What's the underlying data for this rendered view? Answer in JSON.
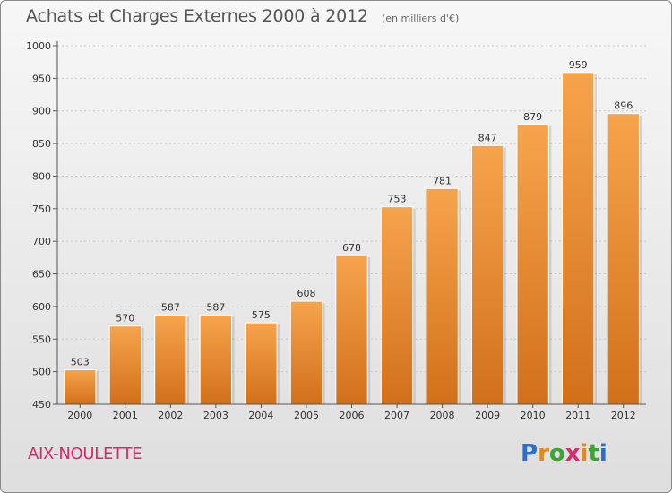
{
  "header": {
    "title": "Achats et Charges Externes 2000 à 2012",
    "unit": "(en milliers d'€)"
  },
  "footer": {
    "place": "AIX-NOULETTE",
    "logo_letters": [
      "P",
      "r",
      "o",
      "x",
      "i",
      "t",
      "i"
    ],
    "logo_colors": [
      "#2a6fc9",
      "#e08a1e",
      "#3aa534",
      "#d92a6a",
      "#e08a1e",
      "#3aa534",
      "#2a6fc9"
    ]
  },
  "chart_data": {
    "type": "bar",
    "categories": [
      "2000",
      "2001",
      "2002",
      "2003",
      "2004",
      "2005",
      "2006",
      "2007",
      "2008",
      "2009",
      "2010",
      "2011",
      "2012"
    ],
    "values": [
      503,
      570,
      587,
      587,
      575,
      608,
      678,
      753,
      781,
      847,
      879,
      959,
      896
    ],
    "title": "Achats et Charges Externes 2000 à 2012",
    "ylim": [
      450,
      1000
    ],
    "yticks": [
      450,
      500,
      550,
      600,
      650,
      700,
      750,
      800,
      850,
      900,
      950,
      1000
    ],
    "grid": true,
    "bar_color_top": "#f6a44c",
    "bar_color_bottom": "#d2701a"
  }
}
